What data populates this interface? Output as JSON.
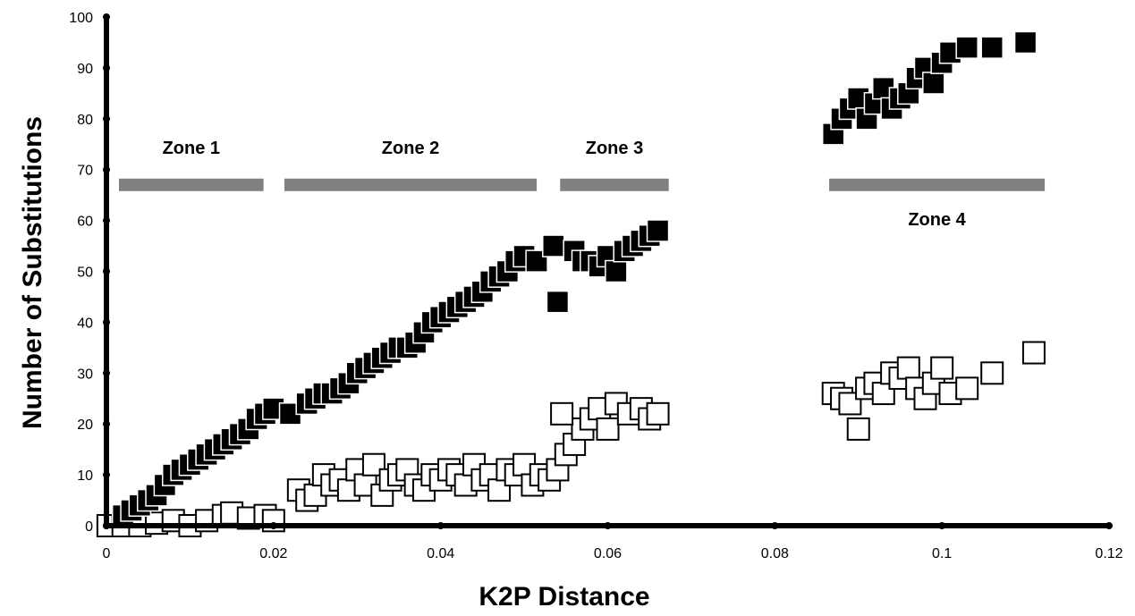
{
  "chart_data": {
    "type": "scatter",
    "title": "",
    "xlabel": "K2P Distance",
    "ylabel": "Number of Substitutions",
    "xlim": [
      0,
      0.12
    ],
    "ylim": [
      0,
      100
    ],
    "x_ticks": [
      "0",
      "0.02",
      "0.04",
      "0.06",
      "0.08",
      "0.1",
      "0.12"
    ],
    "y_ticks": [
      "0",
      "10",
      "20",
      "30",
      "40",
      "50",
      "60",
      "70",
      "80",
      "90",
      "100"
    ],
    "grid": false,
    "legend": "none",
    "colors": {
      "filled": "#000000",
      "open": "#ffffff",
      "zone_bar": "#808080"
    },
    "zones": [
      {
        "label": "Zone 1",
        "x_start": 0.0015,
        "x_end": 0.0188,
        "y": 67,
        "label_position": "above"
      },
      {
        "label": "Zone 2",
        "x_start": 0.0213,
        "x_end": 0.0515,
        "y": 67,
        "label_position": "above"
      },
      {
        "label": "Zone 3",
        "x_start": 0.0543,
        "x_end": 0.0673,
        "y": 67,
        "label_position": "above"
      },
      {
        "label": "Zone 4",
        "x_start": 0.0865,
        "x_end": 0.1123,
        "y": 67,
        "label_position": "below"
      }
    ],
    "series": [
      {
        "marker": "filled-square",
        "points": [
          [
            0.002,
            2
          ],
          [
            0.003,
            3
          ],
          [
            0.004,
            4
          ],
          [
            0.005,
            5
          ],
          [
            0.006,
            6
          ],
          [
            0.007,
            8
          ],
          [
            0.008,
            10
          ],
          [
            0.009,
            11
          ],
          [
            0.01,
            12
          ],
          [
            0.011,
            13
          ],
          [
            0.012,
            14
          ],
          [
            0.013,
            15
          ],
          [
            0.014,
            16
          ],
          [
            0.015,
            17
          ],
          [
            0.016,
            18
          ],
          [
            0.017,
            19
          ],
          [
            0.018,
            21
          ],
          [
            0.019,
            22
          ],
          [
            0.02,
            23
          ],
          [
            0.022,
            22
          ],
          [
            0.024,
            24
          ],
          [
            0.025,
            25
          ],
          [
            0.026,
            26
          ],
          [
            0.027,
            26
          ],
          [
            0.028,
            27
          ],
          [
            0.029,
            28
          ],
          [
            0.03,
            30
          ],
          [
            0.031,
            31
          ],
          [
            0.032,
            32
          ],
          [
            0.033,
            33
          ],
          [
            0.034,
            34
          ],
          [
            0.035,
            35
          ],
          [
            0.036,
            35
          ],
          [
            0.037,
            36
          ],
          [
            0.038,
            38
          ],
          [
            0.039,
            40
          ],
          [
            0.04,
            41
          ],
          [
            0.041,
            42
          ],
          [
            0.042,
            43
          ],
          [
            0.043,
            44
          ],
          [
            0.044,
            45
          ],
          [
            0.045,
            46
          ],
          [
            0.046,
            48
          ],
          [
            0.047,
            49
          ],
          [
            0.048,
            50
          ],
          [
            0.049,
            52
          ],
          [
            0.05,
            53
          ],
          [
            0.0515,
            52
          ],
          [
            0.0535,
            55
          ],
          [
            0.054,
            44
          ],
          [
            0.056,
            54
          ],
          [
            0.057,
            52
          ],
          [
            0.058,
            52
          ],
          [
            0.059,
            51
          ],
          [
            0.06,
            53
          ],
          [
            0.061,
            50
          ],
          [
            0.062,
            54
          ],
          [
            0.063,
            55
          ],
          [
            0.064,
            56
          ],
          [
            0.065,
            57
          ],
          [
            0.066,
            58
          ],
          [
            0.087,
            77
          ],
          [
            0.088,
            80
          ],
          [
            0.089,
            82
          ],
          [
            0.09,
            84
          ],
          [
            0.091,
            80
          ],
          [
            0.092,
            83
          ],
          [
            0.093,
            86
          ],
          [
            0.094,
            82
          ],
          [
            0.095,
            84
          ],
          [
            0.096,
            85
          ],
          [
            0.097,
            88
          ],
          [
            0.098,
            90
          ],
          [
            0.099,
            87
          ],
          [
            0.1,
            91
          ],
          [
            0.101,
            93
          ],
          [
            0.103,
            94
          ],
          [
            0.106,
            94
          ],
          [
            0.11,
            95
          ]
        ]
      },
      {
        "marker": "open-square",
        "points": [
          [
            0.0002,
            0
          ],
          [
            0.002,
            0
          ],
          [
            0.004,
            0
          ],
          [
            0.006,
            0.5
          ],
          [
            0.008,
            1
          ],
          [
            0.01,
            0
          ],
          [
            0.012,
            1
          ],
          [
            0.014,
            2
          ],
          [
            0.015,
            2.5
          ],
          [
            0.017,
            1.5
          ],
          [
            0.019,
            2
          ],
          [
            0.02,
            1
          ],
          [
            0.023,
            7
          ],
          [
            0.024,
            5
          ],
          [
            0.025,
            6
          ],
          [
            0.026,
            10
          ],
          [
            0.027,
            8
          ],
          [
            0.028,
            9
          ],
          [
            0.029,
            7
          ],
          [
            0.03,
            11
          ],
          [
            0.031,
            8
          ],
          [
            0.032,
            12
          ],
          [
            0.033,
            6
          ],
          [
            0.034,
            9
          ],
          [
            0.035,
            10
          ],
          [
            0.036,
            11
          ],
          [
            0.037,
            8
          ],
          [
            0.038,
            7
          ],
          [
            0.039,
            10
          ],
          [
            0.04,
            9
          ],
          [
            0.041,
            11
          ],
          [
            0.042,
            10
          ],
          [
            0.043,
            8
          ],
          [
            0.044,
            12
          ],
          [
            0.045,
            9
          ],
          [
            0.046,
            10
          ],
          [
            0.047,
            7
          ],
          [
            0.048,
            11
          ],
          [
            0.049,
            10
          ],
          [
            0.05,
            12
          ],
          [
            0.051,
            8
          ],
          [
            0.052,
            10
          ],
          [
            0.053,
            9
          ],
          [
            0.054,
            11
          ],
          [
            0.055,
            14
          ],
          [
            0.056,
            16
          ],
          [
            0.057,
            19
          ],
          [
            0.0545,
            22
          ],
          [
            0.058,
            21
          ],
          [
            0.059,
            23
          ],
          [
            0.06,
            19
          ],
          [
            0.061,
            24
          ],
          [
            0.0625,
            22
          ],
          [
            0.064,
            23
          ],
          [
            0.065,
            21
          ],
          [
            0.066,
            22
          ],
          [
            0.087,
            26
          ],
          [
            0.088,
            25
          ],
          [
            0.089,
            24
          ],
          [
            0.09,
            19
          ],
          [
            0.091,
            27
          ],
          [
            0.092,
            28
          ],
          [
            0.093,
            26
          ],
          [
            0.094,
            30
          ],
          [
            0.095,
            29
          ],
          [
            0.096,
            31
          ],
          [
            0.097,
            27
          ],
          [
            0.098,
            25
          ],
          [
            0.099,
            28
          ],
          [
            0.1,
            31
          ],
          [
            0.101,
            26
          ],
          [
            0.103,
            27
          ],
          [
            0.106,
            30
          ],
          [
            0.111,
            34
          ]
        ]
      }
    ]
  }
}
